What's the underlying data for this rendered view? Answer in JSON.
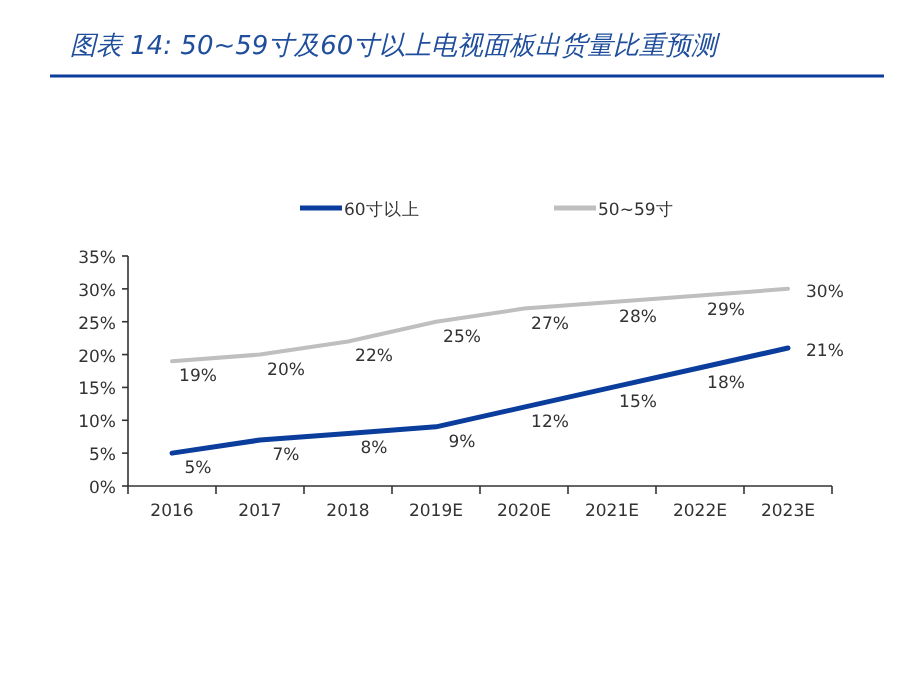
{
  "chart_data": {
    "type": "line",
    "title": "图表 14:  50~59寸及60寸以上电视面板出货量比重预测",
    "categories": [
      "2016",
      "2017",
      "2018",
      "2019E",
      "2020E",
      "2021E",
      "2022E",
      "2023E"
    ],
    "series": [
      {
        "name": "60寸以上",
        "color": "#0b3d9c",
        "values": [
          5,
          7,
          8,
          9,
          12,
          15,
          18,
          21
        ],
        "value_labels": [
          "5%",
          "7%",
          "8%",
          "9%",
          "12%",
          "15%",
          "18%",
          "21%"
        ]
      },
      {
        "name": "50~59寸",
        "color": "#bfbfbf",
        "values": [
          19,
          20,
          22,
          25,
          27,
          28,
          29,
          30
        ],
        "value_labels": [
          "19%",
          "20%",
          "22%",
          "25%",
          "27%",
          "28%",
          "29%",
          "30%"
        ]
      }
    ],
    "ylim": [
      0,
      35
    ],
    "yticks": [
      {
        "value": 0,
        "label": "0%"
      },
      {
        "value": 5,
        "label": "5%"
      },
      {
        "value": 10,
        "label": "10%"
      },
      {
        "value": 15,
        "label": "15%"
      },
      {
        "value": 20,
        "label": "20%"
      },
      {
        "value": 25,
        "label": "25%"
      },
      {
        "value": 30,
        "label": "30%"
      },
      {
        "value": 35,
        "label": "35%"
      }
    ],
    "grid": false,
    "legend": "top",
    "marker": "none",
    "line_style": "solid"
  }
}
